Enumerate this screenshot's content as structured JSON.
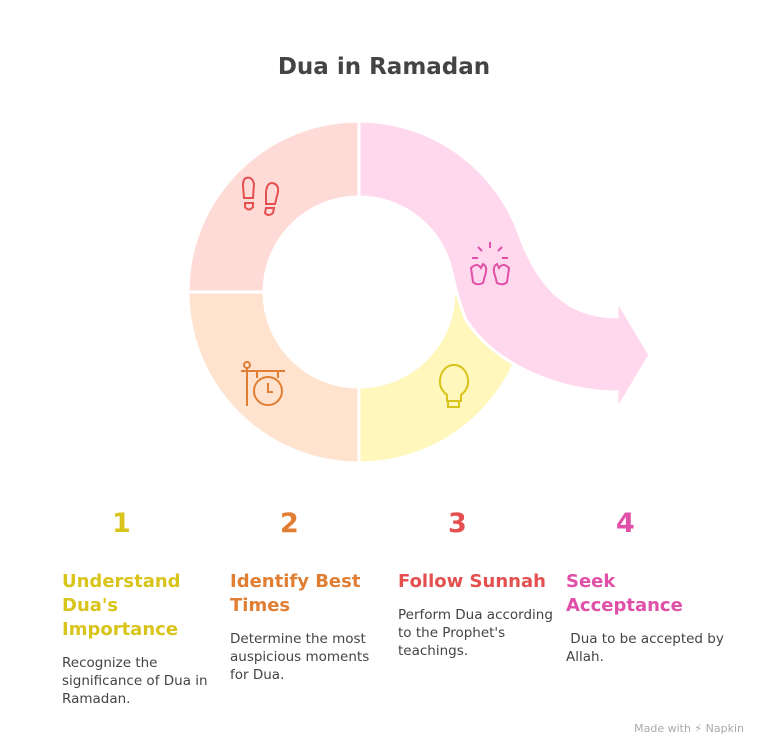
{
  "title": "Dua in Ramadan",
  "colors": {
    "yellow": "#d8c41a",
    "orange": "#e07f33",
    "red": "#e45050",
    "pink": "#e050a8",
    "seg_red": "#ffdbd8",
    "seg_orange": "#ffe3cf",
    "seg_yellow": "#fff7bb",
    "seg_pink": "#ffd8ee"
  },
  "steps": [
    {
      "number": "1",
      "heading": "Understand Dua's Importance",
      "description": "Recognize the significance of Dua in Ramadan.",
      "icon": "lightbulb-icon"
    },
    {
      "number": "2",
      "heading": "Identify Best Times",
      "description": "Determine the most auspicious moments for Dua.",
      "icon": "hanging-clock-icon"
    },
    {
      "number": "3",
      "heading": "Follow Sunnah",
      "description": "Perform Dua according to the Prophet's teachings.",
      "icon": "footsteps-icon"
    },
    {
      "number": "4",
      "heading": "Seek Acceptance",
      "description": " Dua to be accepted by Allah.",
      "icon": "clapping-hands-icon"
    }
  ],
  "footer": "Made with ⚡ Napkin"
}
